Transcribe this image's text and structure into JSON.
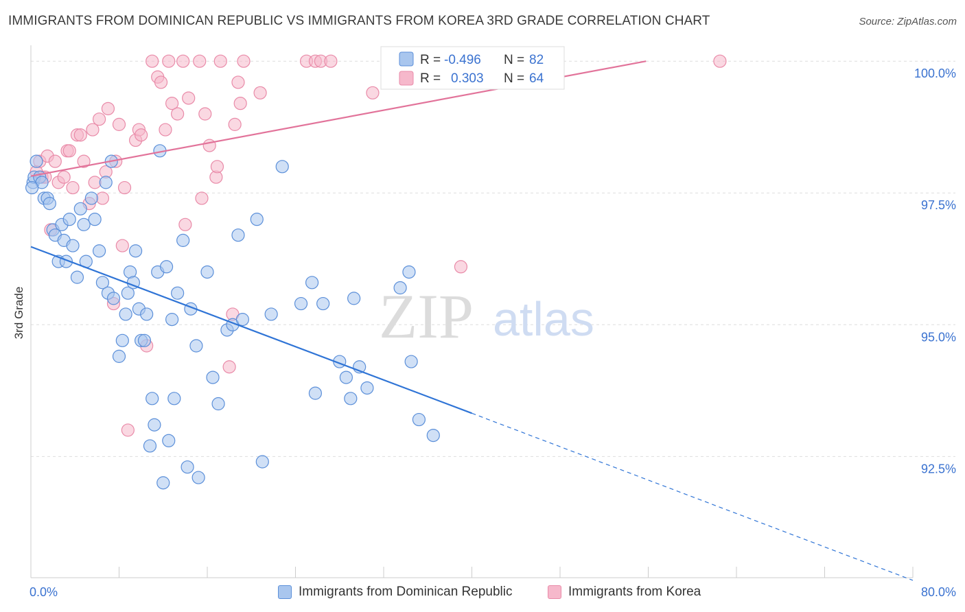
{
  "header": {
    "title": "IMMIGRANTS FROM DOMINICAN REPUBLIC VS IMMIGRANTS FROM KOREA 3RD GRADE CORRELATION CHART",
    "source": "Source: ZipAtlas.com"
  },
  "watermark": {
    "zip": "ZIP",
    "atlas": "atlas"
  },
  "colors": {
    "blue_fill": "#a9c6ee",
    "blue_stroke": "#5b8fd9",
    "blue_line": "#2f74d6",
    "pink_fill": "#f6b8cb",
    "pink_stroke": "#e98aa8",
    "pink_line": "#e2739a",
    "value_text": "#3a72d0",
    "grid": "#dddddd"
  },
  "chart_data": {
    "type": "scatter",
    "title": "IMMIGRANTS FROM DOMINICAN REPUBLIC VS IMMIGRANTS FROM KOREA 3RD GRADE CORRELATION CHART",
    "xlabel": "",
    "ylabel": "3rd Grade",
    "xlim": [
      0,
      80
    ],
    "ylim": [
      90.2,
      100.25
    ],
    "x_tick_labels": [
      "0.0%",
      "80.0%"
    ],
    "y_ticks": [
      92.5,
      95.0,
      97.5,
      100.0
    ],
    "y_tick_labels": [
      "92.5%",
      "95.0%",
      "97.5%",
      "100.0%"
    ],
    "grid": true,
    "legend_position": "top-center",
    "stats": [
      {
        "r_label": "R =",
        "r": "-0.496",
        "n_label": "N =",
        "n": "82"
      },
      {
        "r_label": "R =",
        "r": "0.303",
        "n_label": "N =",
        "n": "64"
      }
    ],
    "series": [
      {
        "name": "Immigrants from Dominican Republic",
        "color": "#a9c6ee",
        "trend": {
          "x0": 0,
          "y0": 96.48,
          "x1": 40,
          "y1": 93.32,
          "dash_to_x": 80,
          "dash_to_y": 90.15
        },
        "points": [
          [
            0.2,
            97.7
          ],
          [
            0.3,
            97.8
          ],
          [
            0.5,
            98.1
          ],
          [
            0.8,
            97.8
          ],
          [
            1.0,
            97.7
          ],
          [
            1.2,
            97.4
          ],
          [
            1.5,
            97.4
          ],
          [
            1.7,
            97.3
          ],
          [
            2.0,
            96.8
          ],
          [
            2.2,
            96.7
          ],
          [
            2.5,
            96.2
          ],
          [
            2.8,
            96.9
          ],
          [
            3.0,
            96.6
          ],
          [
            3.2,
            96.2
          ],
          [
            3.5,
            97.0
          ],
          [
            3.8,
            96.5
          ],
          [
            4.2,
            95.9
          ],
          [
            4.5,
            97.2
          ],
          [
            4.8,
            96.9
          ],
          [
            5.0,
            96.2
          ],
          [
            5.5,
            97.4
          ],
          [
            5.8,
            97.0
          ],
          [
            6.2,
            96.4
          ],
          [
            6.5,
            95.8
          ],
          [
            6.8,
            97.7
          ],
          [
            7.0,
            95.6
          ],
          [
            7.5,
            95.5
          ],
          [
            7.3,
            98.1
          ],
          [
            8.0,
            94.4
          ],
          [
            8.3,
            94.7
          ],
          [
            8.6,
            95.2
          ],
          [
            8.8,
            95.6
          ],
          [
            9.0,
            96.0
          ],
          [
            9.3,
            95.8
          ],
          [
            9.8,
            95.3
          ],
          [
            10.0,
            94.7
          ],
          [
            10.3,
            94.7
          ],
          [
            10.5,
            95.2
          ],
          [
            10.8,
            92.7
          ],
          [
            11.0,
            93.6
          ],
          [
            11.2,
            93.1
          ],
          [
            11.5,
            96.0
          ],
          [
            11.7,
            98.3
          ],
          [
            12.0,
            92.0
          ],
          [
            12.3,
            96.1
          ],
          [
            12.5,
            92.8
          ],
          [
            12.8,
            95.1
          ],
          [
            13.0,
            93.6
          ],
          [
            13.3,
            95.6
          ],
          [
            13.8,
            96.6
          ],
          [
            14.2,
            92.3
          ],
          [
            14.5,
            95.3
          ],
          [
            15.0,
            94.6
          ],
          [
            15.2,
            92.1
          ],
          [
            16.0,
            96.0
          ],
          [
            16.5,
            94.0
          ],
          [
            17.0,
            93.5
          ],
          [
            17.8,
            94.9
          ],
          [
            18.3,
            95.0
          ],
          [
            18.8,
            96.7
          ],
          [
            19.2,
            95.1
          ],
          [
            20.5,
            97.0
          ],
          [
            21.0,
            92.4
          ],
          [
            21.8,
            95.2
          ],
          [
            22.8,
            98.0
          ],
          [
            24.5,
            95.4
          ],
          [
            25.5,
            95.8
          ],
          [
            25.8,
            93.7
          ],
          [
            26.5,
            95.4
          ],
          [
            28.0,
            94.3
          ],
          [
            28.6,
            94.0
          ],
          [
            29.0,
            93.6
          ],
          [
            29.3,
            95.5
          ],
          [
            29.8,
            94.2
          ],
          [
            30.5,
            93.8
          ],
          [
            33.5,
            95.7
          ],
          [
            34.3,
            96.0
          ],
          [
            34.5,
            94.3
          ],
          [
            35.2,
            93.2
          ],
          [
            36.5,
            92.9
          ],
          [
            0.1,
            97.6
          ],
          [
            9.5,
            96.4
          ]
        ]
      },
      {
        "name": "Immigrants from Korea",
        "color": "#f6b8cb",
        "trend": {
          "x0": 0,
          "y0": 97.82,
          "x1": 55.8,
          "y1": 100.0
        },
        "points": [
          [
            0.5,
            97.9
          ],
          [
            0.8,
            98.1
          ],
          [
            1.0,
            97.8
          ],
          [
            1.3,
            97.8
          ],
          [
            1.5,
            98.2
          ],
          [
            1.8,
            96.8
          ],
          [
            2.2,
            98.1
          ],
          [
            2.5,
            97.7
          ],
          [
            3.0,
            97.8
          ],
          [
            3.3,
            98.3
          ],
          [
            3.5,
            98.3
          ],
          [
            3.8,
            97.6
          ],
          [
            4.2,
            98.6
          ],
          [
            4.5,
            98.6
          ],
          [
            4.8,
            98.1
          ],
          [
            5.3,
            97.3
          ],
          [
            5.6,
            98.7
          ],
          [
            5.8,
            97.7
          ],
          [
            6.2,
            98.9
          ],
          [
            6.5,
            97.4
          ],
          [
            6.8,
            97.9
          ],
          [
            7.0,
            99.1
          ],
          [
            7.5,
            95.4
          ],
          [
            7.7,
            98.1
          ],
          [
            8.0,
            98.8
          ],
          [
            8.3,
            96.5
          ],
          [
            8.5,
            97.6
          ],
          [
            8.8,
            93.0
          ],
          [
            9.5,
            98.5
          ],
          [
            9.8,
            98.7
          ],
          [
            10.0,
            98.6
          ],
          [
            10.5,
            94.6
          ],
          [
            11.0,
            100.0
          ],
          [
            11.5,
            99.7
          ],
          [
            11.8,
            99.6
          ],
          [
            12.2,
            98.7
          ],
          [
            12.5,
            100.0
          ],
          [
            12.8,
            99.2
          ],
          [
            13.3,
            99.0
          ],
          [
            13.8,
            100.0
          ],
          [
            14.0,
            96.9
          ],
          [
            14.3,
            99.3
          ],
          [
            15.3,
            100.0
          ],
          [
            15.5,
            97.4
          ],
          [
            15.8,
            99.0
          ],
          [
            16.2,
            98.4
          ],
          [
            16.8,
            97.8
          ],
          [
            16.9,
            98.0
          ],
          [
            17.2,
            100.0
          ],
          [
            18.0,
            94.2
          ],
          [
            18.3,
            95.2
          ],
          [
            18.5,
            98.8
          ],
          [
            18.8,
            99.6
          ],
          [
            19.0,
            99.2
          ],
          [
            19.3,
            100.0
          ],
          [
            20.8,
            99.4
          ],
          [
            25.0,
            100.0
          ],
          [
            25.8,
            100.0
          ],
          [
            26.3,
            100.0
          ],
          [
            27.2,
            100.0
          ],
          [
            31.0,
            99.4
          ],
          [
            35.0,
            100.0
          ],
          [
            39.0,
            96.1
          ],
          [
            62.5,
            100.0
          ]
        ]
      }
    ]
  }
}
